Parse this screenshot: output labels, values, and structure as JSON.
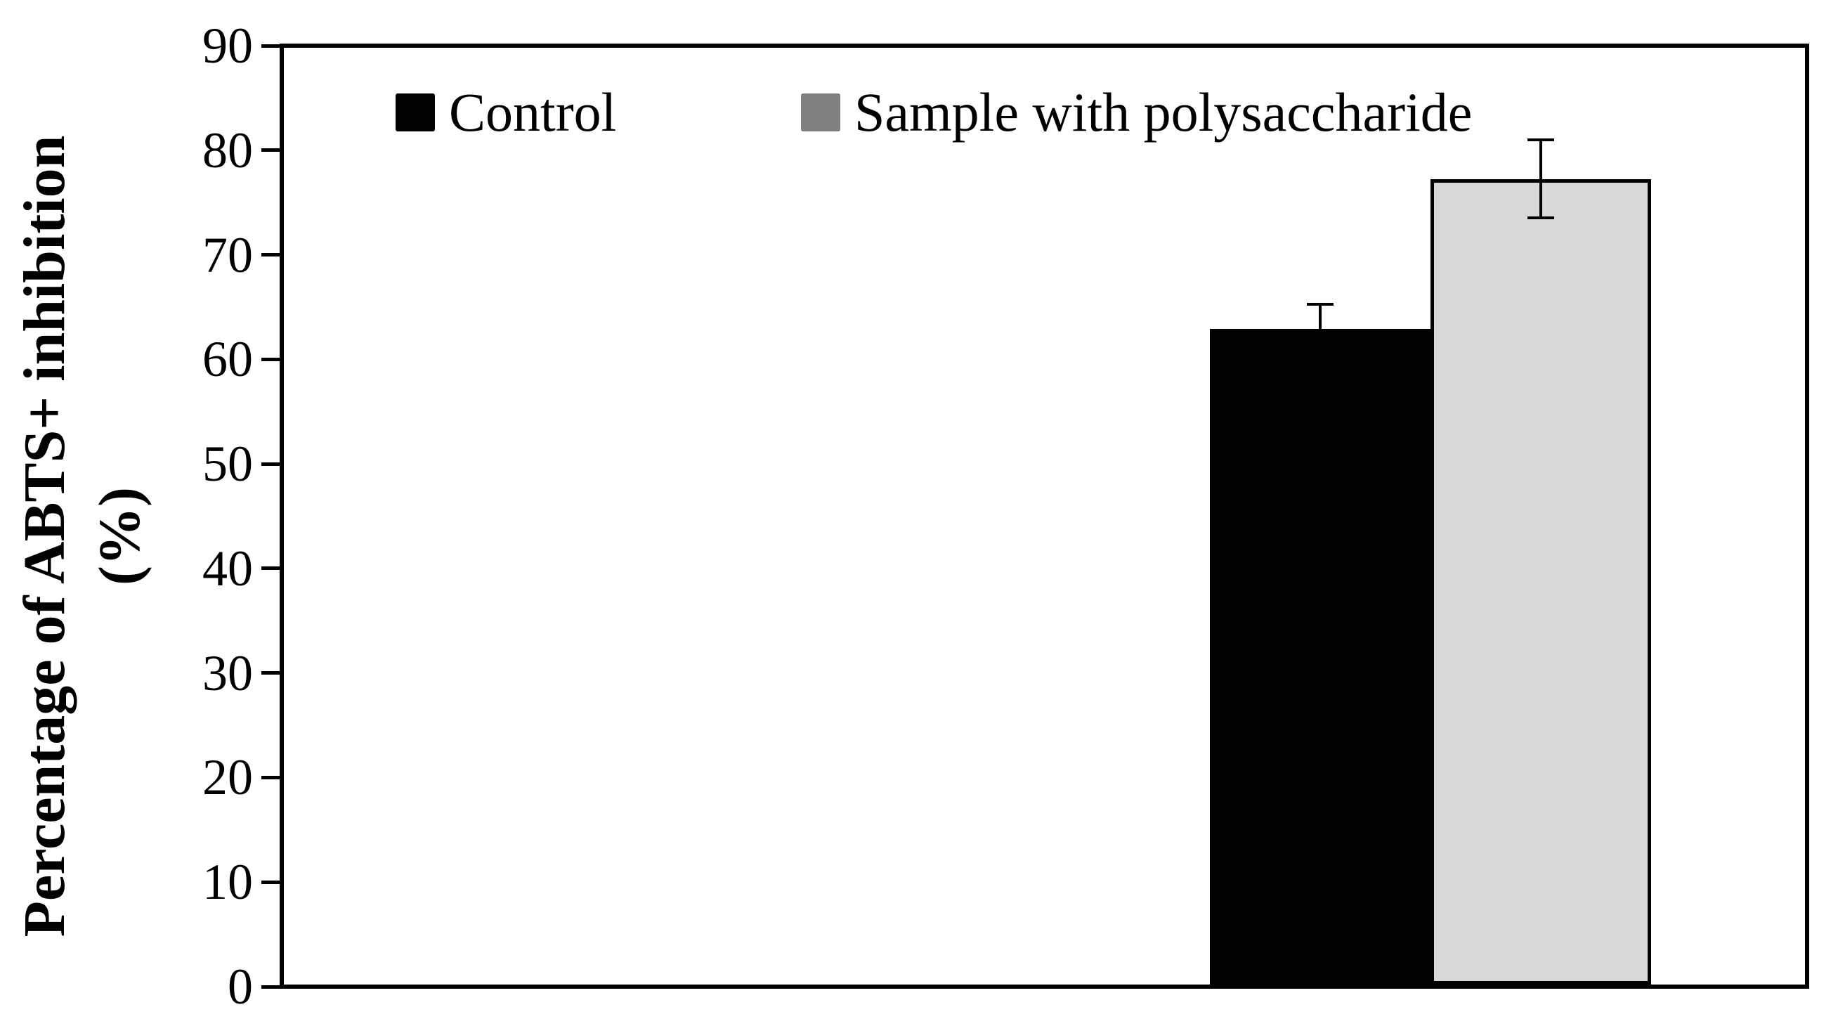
{
  "chart_data": {
    "type": "bar",
    "title": "",
    "ylabel_line1": "Percentage of ABTS+ inhibition",
    "ylabel_line2": "(%)",
    "xlabel": "",
    "ylim": [
      0,
      90
    ],
    "ytick_step": 10,
    "yticks": [
      0,
      10,
      20,
      30,
      40,
      50,
      60,
      70,
      80,
      90
    ],
    "grid": false,
    "legend_position": "top-inside",
    "categories": [
      ""
    ],
    "series": [
      {
        "name": "Control",
        "values": [
          63.0
        ],
        "error": [
          2.5
        ],
        "fill_color": "#000000",
        "border_color": "#000000",
        "legend_swatch_color": "#000000"
      },
      {
        "name": "Sample with polysaccharide",
        "values": [
          77.4
        ],
        "error": [
          3.9
        ],
        "fill_color": "#d9d9d9",
        "border_color": "#000000",
        "legend_swatch_color": "#808080"
      }
    ]
  },
  "colors": {
    "axis": "#000000",
    "background": "#ffffff",
    "text": "#000000"
  }
}
